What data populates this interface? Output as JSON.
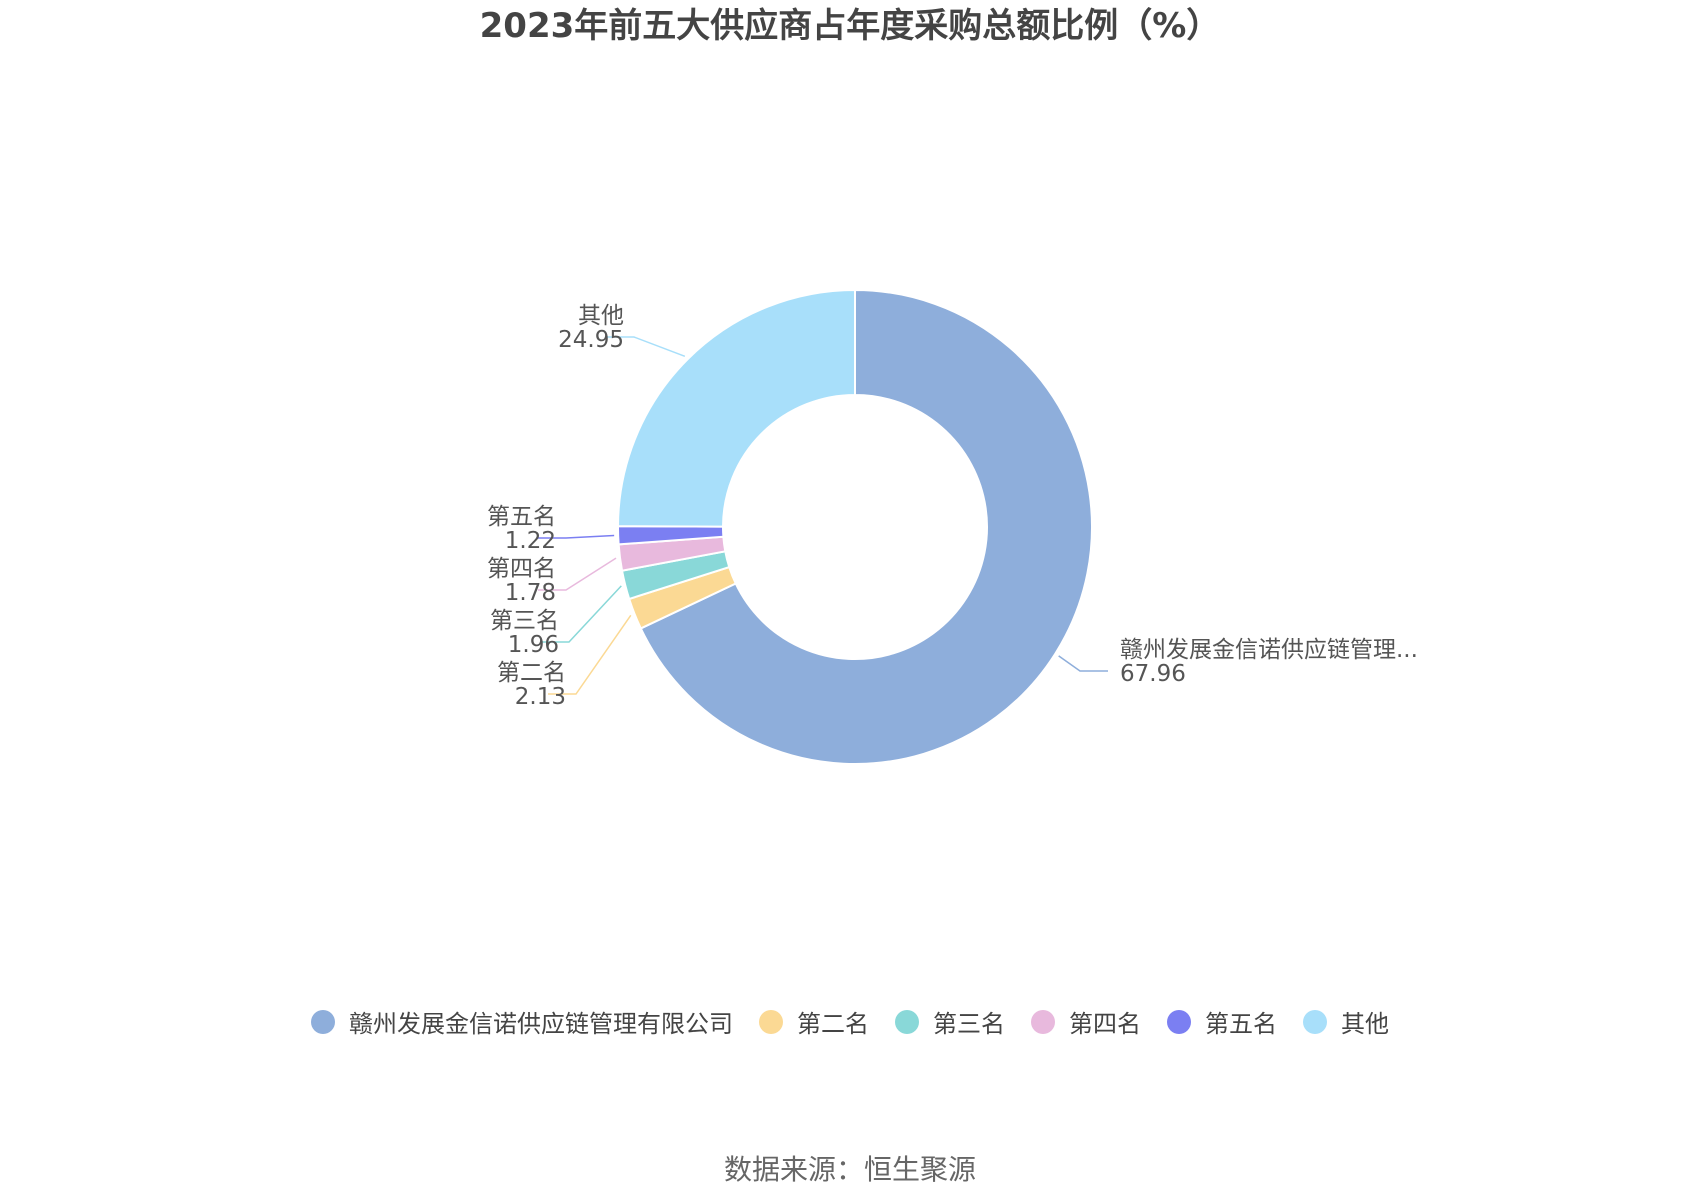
{
  "title": "2023年前五大供应商占年度采购总额比例（%）",
  "source": "数据来源：恒生聚源",
  "chart_data": {
    "type": "pie",
    "donut": true,
    "title": "2023年前五大供应商占年度采购总额比例（%）",
    "legend_position": "bottom",
    "slices": [
      {
        "name": "赣州发展金信诺供应链管理有限公司",
        "label": "赣州发展金信诺供应链管理...",
        "value": 67.96,
        "color": "#8eaedb"
      },
      {
        "name": "第二名",
        "label": "第二名",
        "value": 2.13,
        "color": "#fbd994"
      },
      {
        "name": "第三名",
        "label": "第三名",
        "value": 1.96,
        "color": "#89d8d8"
      },
      {
        "name": "第四名",
        "label": "第四名",
        "value": 1.78,
        "color": "#e8b9dd"
      },
      {
        "name": "第五名",
        "label": "第五名",
        "value": 1.22,
        "color": "#7b7ff2"
      },
      {
        "name": "其他",
        "label": "其他",
        "value": 24.95,
        "color": "#a8dffa"
      }
    ]
  }
}
